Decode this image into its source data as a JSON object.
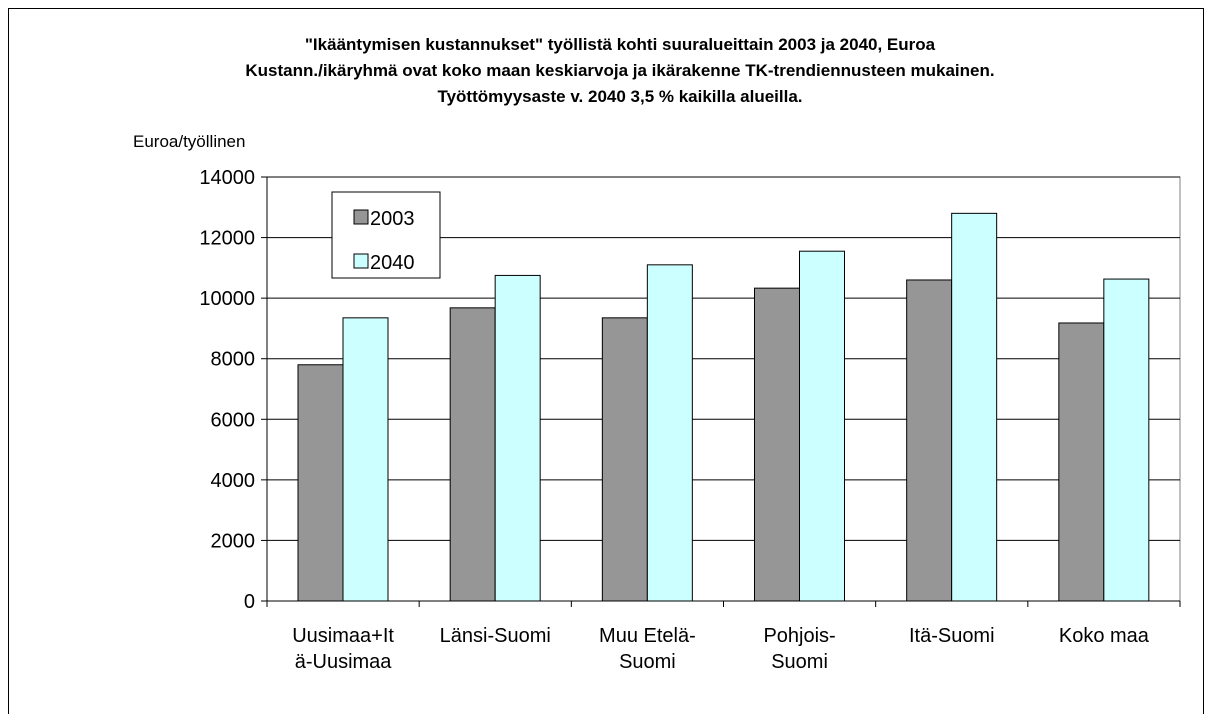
{
  "chart_data": {
    "type": "bar",
    "title": "\"Ikääntymisen kustannukset\" työllistä kohti suuralueittain 2003 ja 2040, Euroa\nKustann./ikäryhmä ovat koko maan keskiarvoja ja ikärakenne TK-trendiennusteen mukainen.\nTyöttömyysaste v. 2040 3,5 % kaikilla alueilla.",
    "y_axis_label": "Euroa/työllinen",
    "categories": [
      "Uusimaa+It\nä-Uusimaa",
      "Länsi-Suomi",
      "Muu Etelä-\nSuomi",
      "Pohjois-\nSuomi",
      "Itä-Suomi",
      "Koko maa"
    ],
    "series": [
      {
        "name": "2003",
        "color": "#969696",
        "values": [
          7800,
          9680,
          9350,
          10330,
          10600,
          9180
        ]
      },
      {
        "name": "2040",
        "color": "#ccffff",
        "values": [
          9350,
          10750,
          11100,
          11550,
          12800,
          10630
        ]
      }
    ],
    "ylim": [
      0,
      14000
    ],
    "yticks": [
      0,
      2000,
      4000,
      6000,
      8000,
      10000,
      12000,
      14000
    ],
    "grid": true,
    "legend_position": "upper left"
  }
}
